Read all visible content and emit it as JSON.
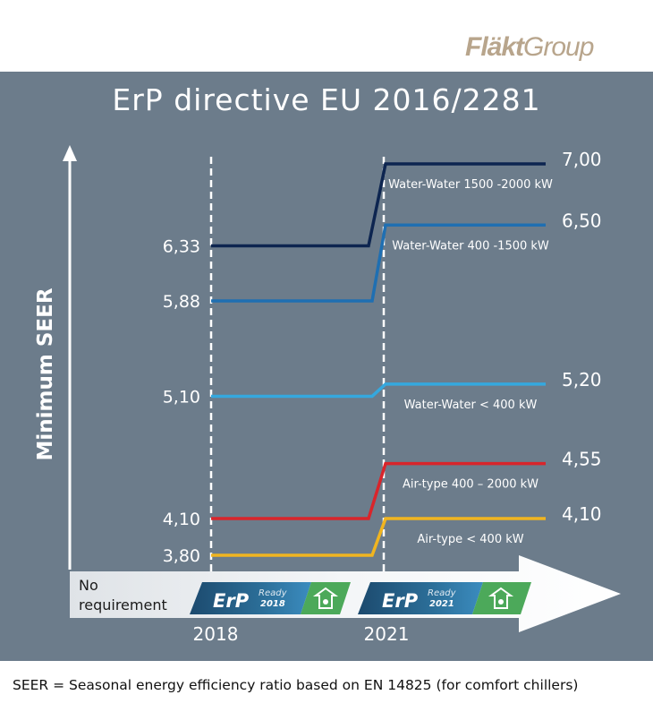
{
  "brand": {
    "logo_bold": "Fläkt",
    "logo_rest": "Group"
  },
  "title": "ErP directive EU 2016/2281",
  "footer": "SEER = Seasonal energy efficiency ratio based on EN 14825 (for comfort chillers)",
  "chart_data": {
    "type": "line",
    "title": "ErP directive EU 2016/2281",
    "ylabel": "Minimum SEER",
    "xlabel": "",
    "x_ticks": [
      "2018",
      "2021"
    ],
    "timeline": {
      "no_requirement": "No requirement",
      "badges": [
        {
          "brand": "ErP",
          "ready": "Ready",
          "year": "2018"
        },
        {
          "brand": "ErP",
          "ready": "Ready",
          "year": "2021"
        }
      ]
    },
    "series": [
      {
        "name": "Water-Water 1500 -2000 kW",
        "values": [
          6.33,
          7.0
        ],
        "value_labels": [
          "6,33",
          "7,00"
        ],
        "color": "#0d2550"
      },
      {
        "name": "Water-Water 400 -1500 kW",
        "values": [
          5.88,
          6.5
        ],
        "value_labels": [
          "5,88",
          "6,50"
        ],
        "color": "#1f6fb2"
      },
      {
        "name": "Water-Water < 400 kW",
        "values": [
          5.1,
          5.2
        ],
        "value_labels": [
          "5,10",
          "5,20"
        ],
        "color": "#35a8de"
      },
      {
        "name": "Air-type 400 – 2000 kW",
        "values": [
          4.1,
          4.55
        ],
        "value_labels": [
          "4,10",
          "4,55"
        ],
        "color": "#d9252b"
      },
      {
        "name": "Air-type < 400 kW",
        "values": [
          3.8,
          4.1
        ],
        "value_labels": [
          "3,80",
          "4,10"
        ],
        "color": "#f1b520"
      }
    ]
  }
}
